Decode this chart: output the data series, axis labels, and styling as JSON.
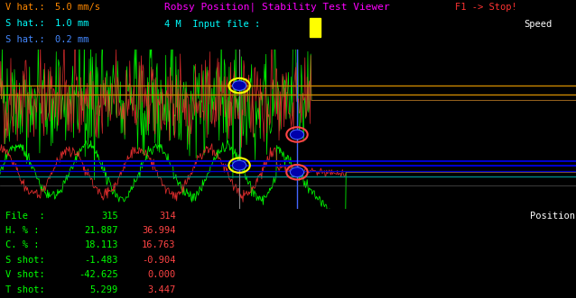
{
  "bg_color": "#000000",
  "fig_width": 6.38,
  "fig_height": 3.31,
  "title": "Robsy Position| Stability Test Viewer",
  "subtitle": "4 M  Input file :",
  "title_color": "#ff00ff",
  "subtitle_color": "#00ffff",
  "f1_stop": "F1 -> Stop!",
  "f1_color": "#ff3333",
  "speed_label": "Speed",
  "speed_color": "#ffffff",
  "position_label": "Position",
  "position_color": "#ffffff",
  "v_hat_label": "V hat.:",
  "v_hat_value": "5.0 mm/s",
  "v_hat_color": "#ff8800",
  "s_hat1_label": "S hat.:",
  "s_hat1_value": "1.0 mm",
  "s_hat1_color": "#00ffff",
  "s_hat2_label": "S hat.:",
  "s_hat2_value": "0.2 mm",
  "s_hat2_color": "#4488ff",
  "file_label": "File  :",
  "file_val1": "315",
  "file_val2": "314",
  "h_label": "H. % :",
  "h_val1": "21.887",
  "h_val2": "36.994",
  "c_label": "C. % :",
  "c_val1": "18.113",
  "c_val2": "16.763",
  "s_shot_label": "S shot:",
  "s_shot_val1": "-1.483",
  "s_shot_val2": "-0.904",
  "v_shot_label": "V shot:",
  "v_shot_val1": "-42.625",
  "v_shot_val2": "0.000",
  "t_shot_label": "T shot:",
  "t_shot_val1": "5.299",
  "t_shot_val2": "3.447",
  "stats_green": "#00ff00",
  "stats_red": "#ff4444",
  "orange_line_color": "#cc8800",
  "blue_line_color": "#0000cc",
  "cyan_line_color": "#008888"
}
